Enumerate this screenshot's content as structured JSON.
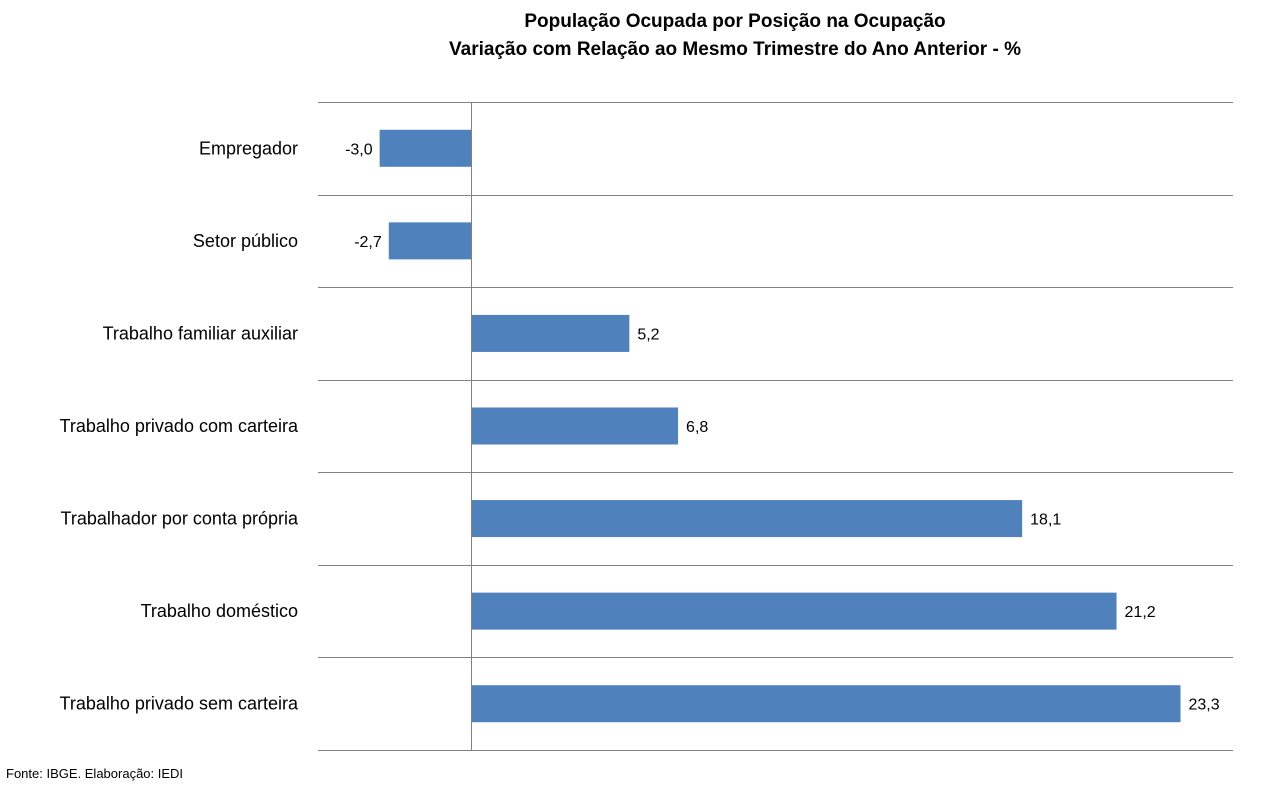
{
  "chart_data": {
    "type": "bar",
    "orientation": "horizontal",
    "title": "População Ocupada por Posição na Ocupação",
    "subtitle": "Variação com Relação ao Mesmo Trimestre do Ano Anterior - %",
    "categories": [
      "Empregador",
      "Setor público",
      "Trabalho familiar auxiliar",
      "Trabalho privado com carteira",
      "Trabalhador por conta própria",
      "Trabalho doméstico",
      "Trabalho privado sem carteira"
    ],
    "values": [
      -3.0,
      -2.7,
      5.2,
      6.8,
      18.1,
      21.2,
      23.3
    ],
    "value_labels": [
      "-3,0",
      "-2,7",
      "5,2",
      "6,8",
      "18,1",
      "21,2",
      "23,3"
    ],
    "xlim": [
      -5,
      25
    ],
    "bar_color": "#4F81BD",
    "grid": true,
    "legend": "none"
  },
  "footer": {
    "source": "Fonte: IBGE. Elaboração: IEDI"
  }
}
